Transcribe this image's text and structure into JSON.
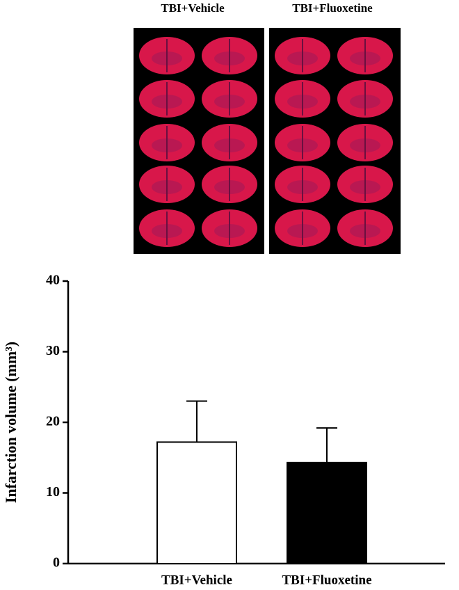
{
  "image_panels": {
    "labels": [
      "TBI+Vehicle",
      "TBI+Fluoxetine"
    ]
  },
  "chart_data": {
    "type": "bar",
    "y_label": "Infarction volume (mm³)",
    "categories": [
      "TBI+Vehicle",
      "TBI+Fluoxetine"
    ],
    "series": [
      {
        "name": null,
        "values": [
          17.2,
          14.3
        ],
        "errors": [
          5.8,
          4.9
        ],
        "colors": [
          "#ffffff",
          "#000000"
        ]
      }
    ],
    "ylim": [
      0,
      40
    ],
    "yticks": [
      0,
      10,
      20,
      30,
      40
    ]
  }
}
